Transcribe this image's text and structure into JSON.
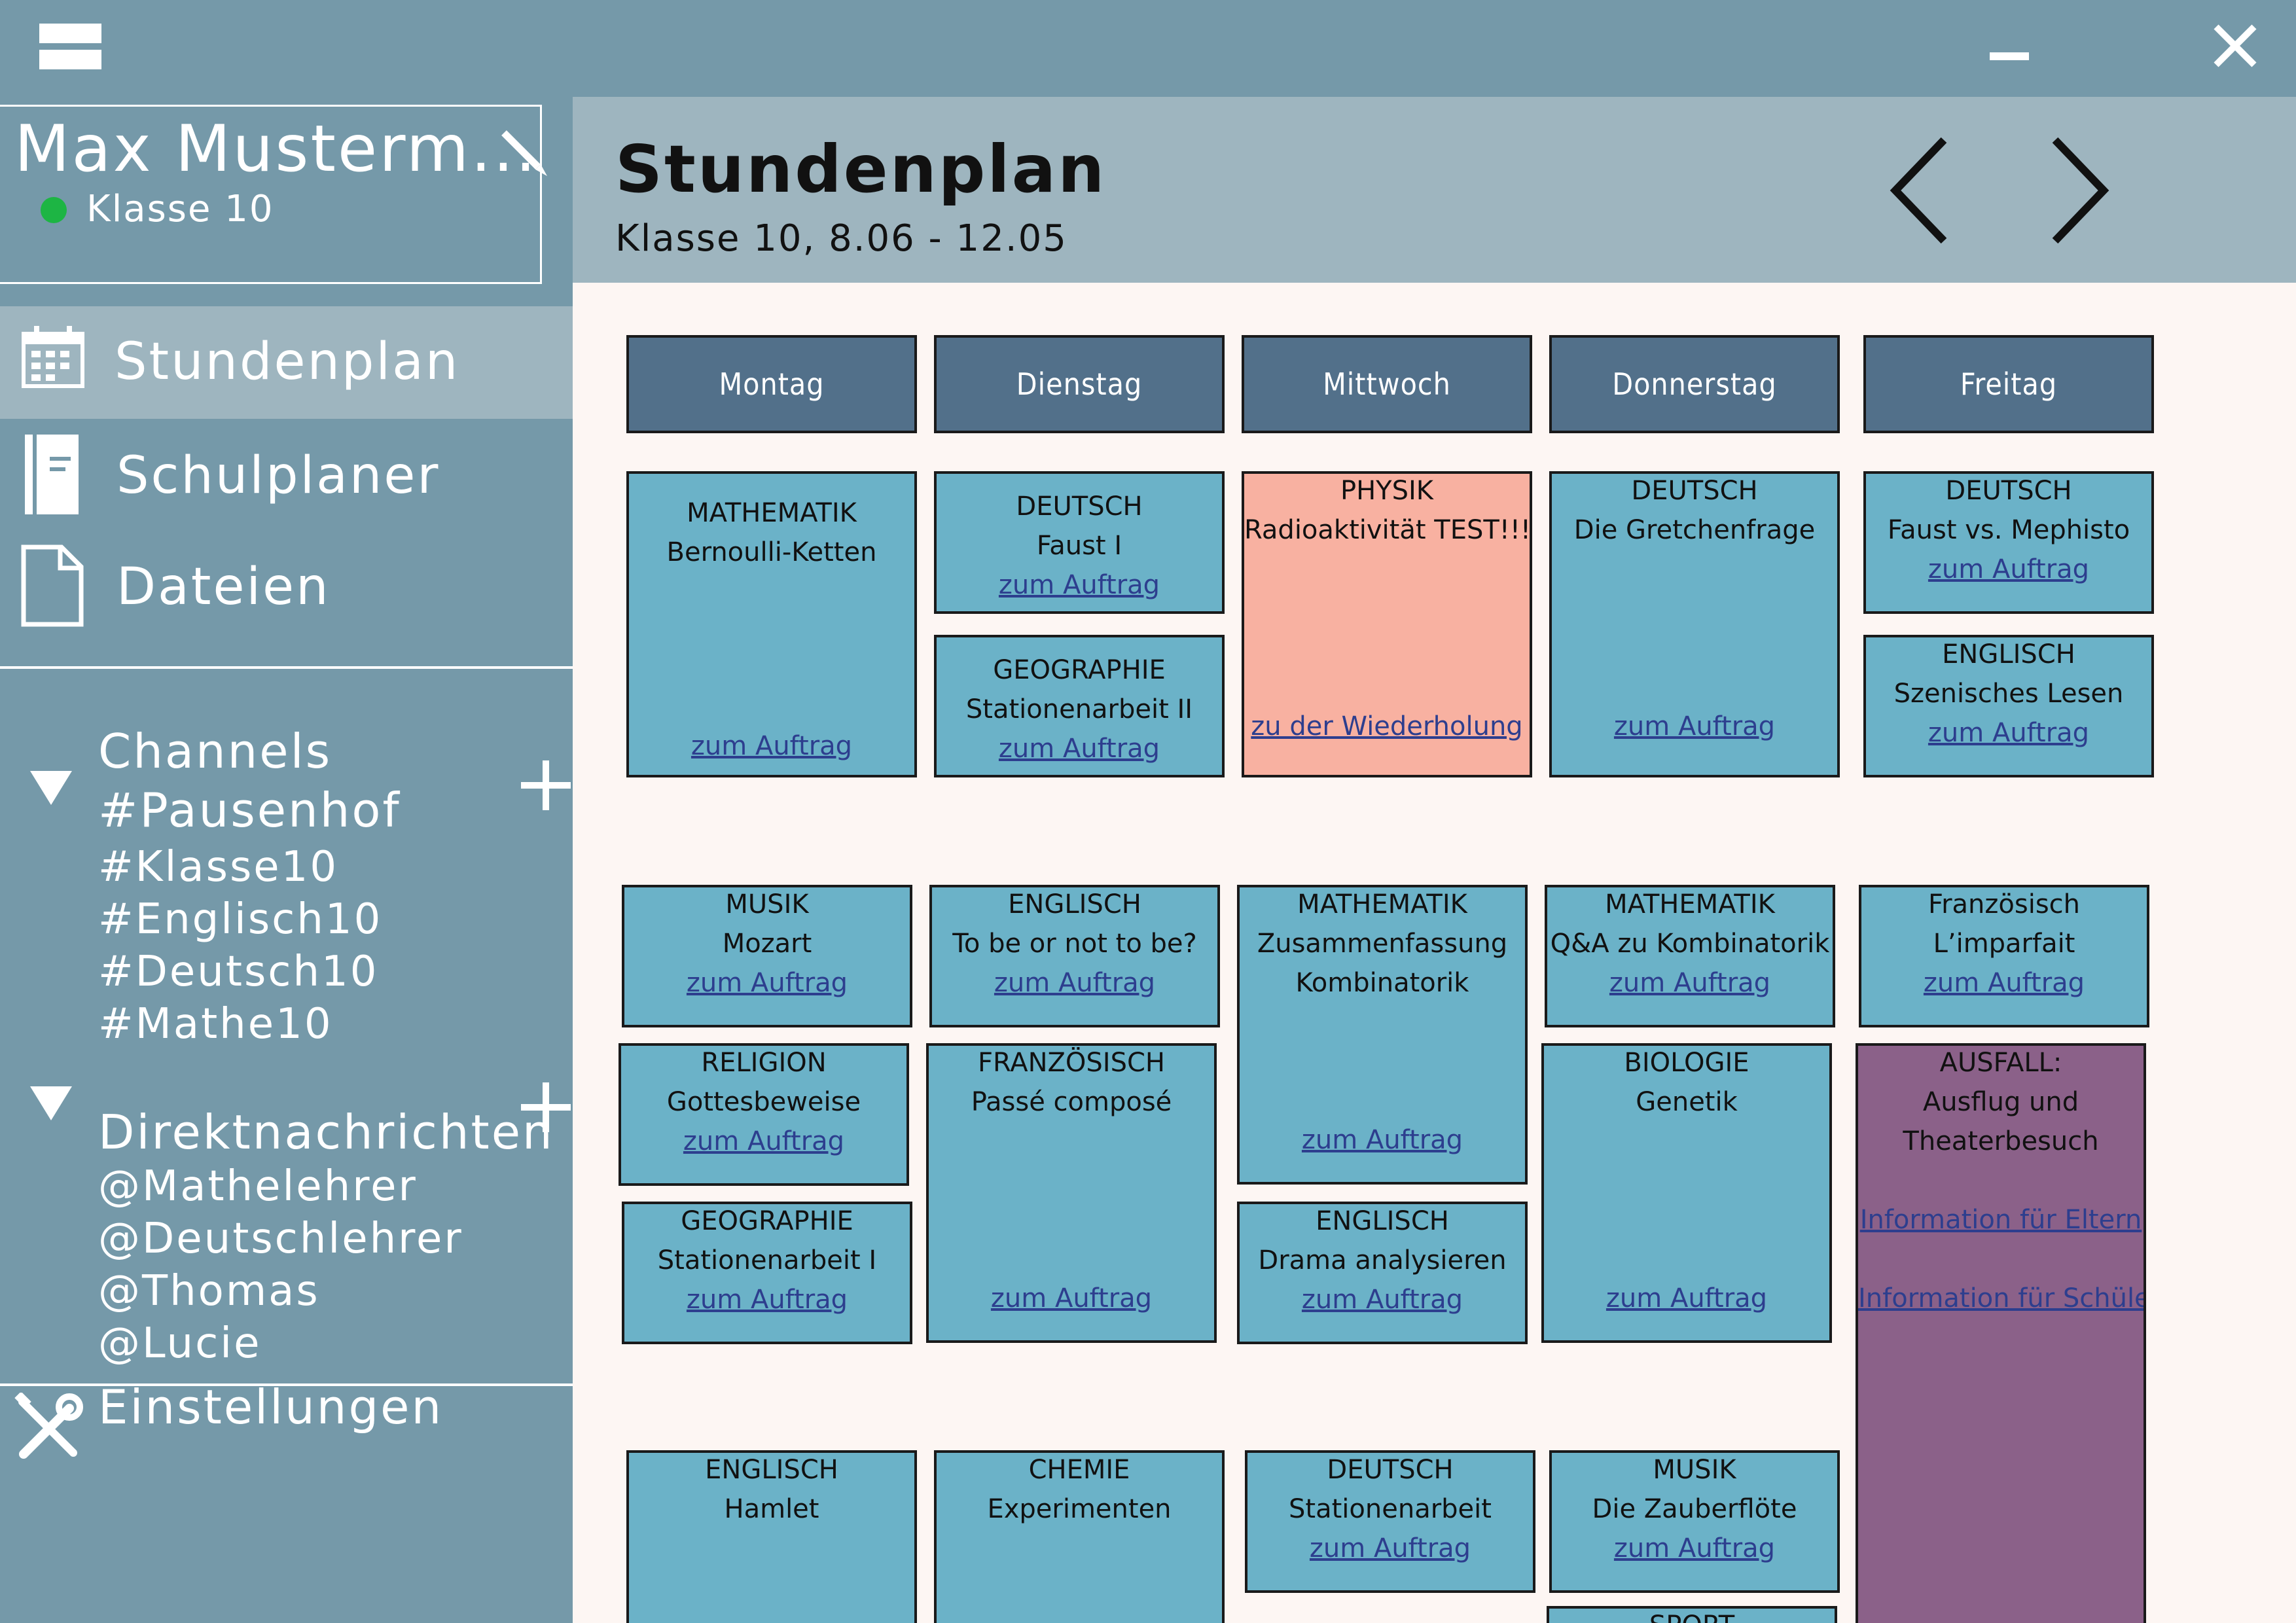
{
  "window": {
    "menu_icon": "hamburger-icon",
    "minimize_icon": "minimize-icon",
    "close_icon": "close-icon"
  },
  "profile": {
    "name": "Max Musterm...",
    "class": "Klasse 10",
    "status_color": "#1db544",
    "edit_icon": "pencil-icon"
  },
  "sidebar": {
    "nav": [
      {
        "label": "Stundenplan",
        "icon": "calendar-icon",
        "active": true
      },
      {
        "label": "Schulplaner",
        "icon": "notebook-icon",
        "active": false
      },
      {
        "label": "Dateien",
        "icon": "file-icon",
        "active": false
      }
    ],
    "channels": {
      "title": "Channels",
      "items": [
        "#Pausenhof",
        "#Klasse10",
        "#Englisch10",
        "#Deutsch10",
        "#Mathe10"
      ]
    },
    "dms": {
      "title": "Direktnachrichten",
      "items": [
        "@Mathelehrer",
        "@Deutschlehrer",
        "@Thomas",
        "@Lucie"
      ]
    },
    "settings": {
      "label": "Einstellungen",
      "icon": "wrench-screwdriver-icon"
    }
  },
  "header": {
    "title": "Stundenplan",
    "subtitle": "Klasse 10, 8.06 - 12.05",
    "prev_icon": "chevron-left-icon",
    "next_icon": "chevron-right-icon"
  },
  "timetable": {
    "days": [
      "Montag",
      "Dienstag",
      "Mittwoch",
      "Donnerstag",
      "Freitag"
    ],
    "lessons": [
      {
        "subject": "MATHEMATIK",
        "topic": "Bernoulli-Ketten",
        "link": "zum Auftrag"
      },
      {
        "subject": "DEUTSCH",
        "topic": "Faust I",
        "link": "zum Auftrag"
      },
      {
        "subject": "GEOGRAPHIE",
        "topic": "Stationenarbeit II",
        "link": "zum Auftrag"
      },
      {
        "subject": "PHYSIK",
        "topic": "Radioaktivität TEST!!!",
        "link": "zu der Wiederholung"
      },
      {
        "subject": "DEUTSCH",
        "topic": "Die Gretchenfrage",
        "link": "zum Auftrag"
      },
      {
        "subject": "DEUTSCH",
        "topic": "Faust vs. Mephisto",
        "link": "zum Auftrag"
      },
      {
        "subject": "ENGLISCH",
        "topic": "Szenisches Lesen",
        "link": "zum Auftrag"
      },
      {
        "subject": "MUSIK",
        "topic": "Mozart",
        "link": "zum Auftrag"
      },
      {
        "subject": "ENGLISCH",
        "topic": "To be or not to be?",
        "link": "zum Auftrag"
      },
      {
        "subject": "MATHEMATIK",
        "topic": "Zusammenfassung",
        "topic2": "Kombinatorik",
        "link": "zum Auftrag"
      },
      {
        "subject": "MATHEMATIK",
        "topic": "Q&A zu Kombinatorik",
        "link": "zum Auftrag"
      },
      {
        "subject": "Französisch",
        "topic": "L’imparfait",
        "link": "zum Auftrag"
      },
      {
        "subject": "RELIGION",
        "topic": "Gottesbeweise",
        "link": "zum Auftrag"
      },
      {
        "subject": "FRANZÖSISCH",
        "topic": "Passé composé",
        "link": "zum Auftrag"
      },
      {
        "subject": "BIOLOGIE",
        "topic": "Genetik",
        "link": "zum Auftrag"
      },
      {
        "subject": "AUSFALL:",
        "topic": "Ausflug und",
        "topic2": "Theaterbesuch",
        "link": "Information für Eltern",
        "link2": "Information für Schüler"
      },
      {
        "subject": "GEOGRAPHIE",
        "topic": "Stationenarbeit I",
        "link": "zum Auftrag"
      },
      {
        "subject": "ENGLISCH",
        "topic": "Drama analysieren",
        "link": "zum Auftrag"
      },
      {
        "subject": "ENGLISCH",
        "topic": "Hamlet"
      },
      {
        "subject": "CHEMIE",
        "topic": "Experimenten"
      },
      {
        "subject": "DEUTSCH",
        "topic": "Stationenarbeit",
        "link": "zum Auftrag"
      },
      {
        "subject": "MUSIK",
        "topic": "Die Zauberflöte",
        "link": "zum Auftrag"
      },
      {
        "subject": "SPORT"
      }
    ]
  },
  "colors": {
    "sidebar_bg": "#7599a9",
    "header_bg": "#9eb5bf",
    "day_bg": "#52708a",
    "lesson_bg": "#6bb2c8",
    "exam_bg": "#f8b1a1",
    "cancel_bg": "#8b6189",
    "link": "#2d3e8e",
    "content_bg": "#fdf6f3"
  }
}
